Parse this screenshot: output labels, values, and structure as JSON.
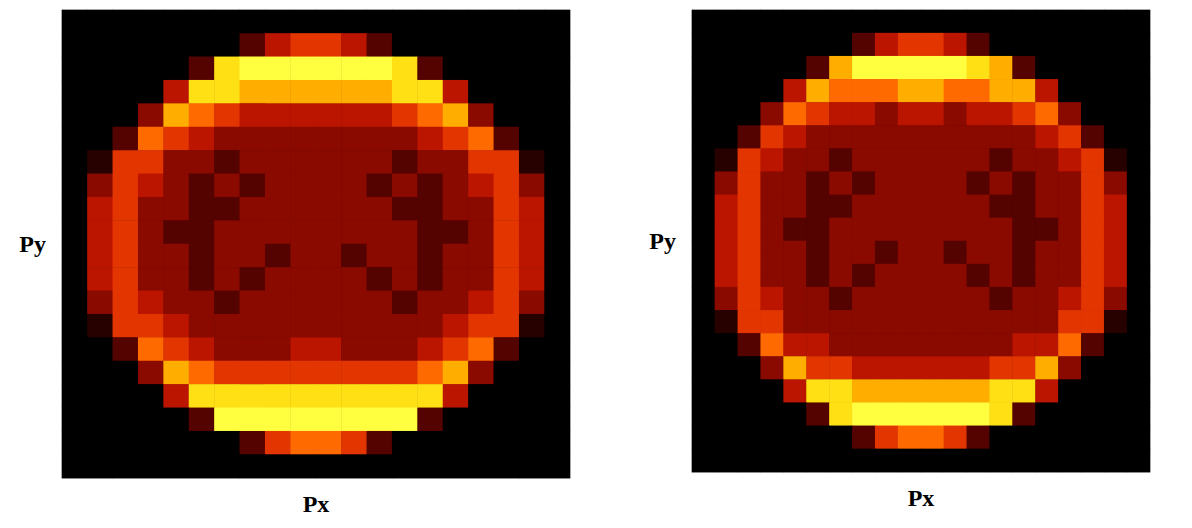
{
  "chart_data": [
    {
      "type": "heatmap",
      "xlabel": "Px",
      "ylabel": "Py",
      "tick_labels": false,
      "zlim": [
        0,
        9
      ],
      "cells": [
        [
          0,
          0,
          0,
          0,
          0,
          0,
          0,
          0,
          0,
          0,
          0,
          0,
          0,
          0,
          0,
          0,
          0,
          0,
          0,
          0
        ],
        [
          0,
          0,
          0,
          0,
          0,
          0,
          0,
          2,
          4,
          5,
          5,
          4,
          2,
          0,
          0,
          0,
          0,
          0,
          0,
          0
        ],
        [
          0,
          0,
          0,
          0,
          0,
          2,
          8,
          9,
          9,
          9,
          9,
          9,
          9,
          8,
          2,
          0,
          0,
          0,
          0,
          0
        ],
        [
          0,
          0,
          0,
          0,
          4,
          8,
          8,
          7,
          7,
          7,
          7,
          7,
          7,
          8,
          8,
          4,
          0,
          0,
          0,
          0
        ],
        [
          0,
          0,
          0,
          3,
          7,
          6,
          5,
          4,
          4,
          4,
          4,
          4,
          4,
          5,
          6,
          7,
          3,
          0,
          0,
          0
        ],
        [
          0,
          0,
          2,
          6,
          5,
          4,
          3,
          3,
          3,
          3,
          3,
          3,
          3,
          3,
          4,
          5,
          6,
          2,
          0,
          0
        ],
        [
          0,
          1,
          5,
          5,
          3,
          3,
          2,
          3,
          3,
          3,
          3,
          3,
          3,
          2,
          3,
          3,
          5,
          5,
          1,
          0
        ],
        [
          0,
          3,
          5,
          4,
          3,
          2,
          3,
          2,
          3,
          3,
          3,
          3,
          2,
          3,
          2,
          3,
          4,
          5,
          3,
          0
        ],
        [
          0,
          4,
          5,
          3,
          3,
          2,
          2,
          3,
          3,
          3,
          3,
          3,
          3,
          2,
          2,
          3,
          3,
          5,
          4,
          0
        ],
        [
          0,
          4,
          5,
          3,
          2,
          2,
          3,
          3,
          3,
          3,
          3,
          3,
          3,
          3,
          2,
          2,
          3,
          5,
          4,
          0
        ],
        [
          0,
          4,
          5,
          3,
          3,
          2,
          3,
          3,
          2,
          3,
          3,
          2,
          3,
          3,
          2,
          3,
          3,
          5,
          4,
          0
        ],
        [
          0,
          4,
          5,
          3,
          3,
          2,
          3,
          2,
          3,
          3,
          3,
          3,
          2,
          3,
          2,
          3,
          3,
          5,
          4,
          0
        ],
        [
          0,
          3,
          5,
          4,
          3,
          3,
          2,
          3,
          3,
          3,
          3,
          3,
          3,
          2,
          3,
          3,
          4,
          5,
          3,
          0
        ],
        [
          0,
          1,
          5,
          5,
          4,
          3,
          3,
          3,
          3,
          3,
          3,
          3,
          3,
          3,
          3,
          4,
          5,
          5,
          1,
          0
        ],
        [
          0,
          0,
          2,
          6,
          5,
          4,
          3,
          3,
          3,
          4,
          4,
          3,
          3,
          3,
          4,
          5,
          6,
          2,
          0,
          0
        ],
        [
          0,
          0,
          0,
          3,
          7,
          6,
          5,
          5,
          5,
          5,
          5,
          5,
          5,
          5,
          6,
          7,
          3,
          0,
          0,
          0
        ],
        [
          0,
          0,
          0,
          0,
          4,
          8,
          8,
          8,
          8,
          8,
          8,
          8,
          8,
          8,
          8,
          4,
          0,
          0,
          0,
          0
        ],
        [
          0,
          0,
          0,
          0,
          0,
          2,
          9,
          9,
          9,
          9,
          9,
          9,
          9,
          9,
          2,
          0,
          0,
          0,
          0,
          0
        ],
        [
          0,
          0,
          0,
          0,
          0,
          0,
          0,
          2,
          5,
          6,
          6,
          5,
          2,
          0,
          0,
          0,
          0,
          0,
          0,
          0
        ],
        [
          0,
          0,
          0,
          0,
          0,
          0,
          0,
          0,
          0,
          0,
          0,
          0,
          0,
          0,
          0,
          0,
          0,
          0,
          0,
          0
        ]
      ]
    },
    {
      "type": "heatmap",
      "xlabel": "Px",
      "ylabel": "Py",
      "tick_labels": false,
      "zlim": [
        0,
        9
      ],
      "cells": [
        [
          0,
          0,
          0,
          0,
          0,
          0,
          0,
          0,
          0,
          0,
          0,
          0,
          0,
          0,
          0,
          0,
          0,
          0,
          0,
          0
        ],
        [
          0,
          0,
          0,
          0,
          0,
          0,
          0,
          2,
          4,
          5,
          5,
          4,
          2,
          0,
          0,
          0,
          0,
          0,
          0,
          0
        ],
        [
          0,
          0,
          0,
          0,
          0,
          2,
          7,
          9,
          9,
          9,
          9,
          9,
          8,
          7,
          2,
          0,
          0,
          0,
          0,
          0
        ],
        [
          0,
          0,
          0,
          0,
          4,
          7,
          6,
          6,
          6,
          7,
          7,
          6,
          6,
          7,
          7,
          4,
          0,
          0,
          0,
          0
        ],
        [
          0,
          0,
          0,
          3,
          6,
          5,
          4,
          4,
          3,
          4,
          4,
          3,
          4,
          4,
          5,
          6,
          3,
          0,
          0,
          0
        ],
        [
          0,
          0,
          2,
          5,
          4,
          3,
          3,
          3,
          3,
          3,
          3,
          3,
          3,
          3,
          3,
          4,
          5,
          2,
          0,
          0
        ],
        [
          0,
          1,
          5,
          4,
          3,
          3,
          2,
          3,
          3,
          3,
          3,
          3,
          3,
          2,
          3,
          3,
          4,
          5,
          1,
          0
        ],
        [
          0,
          3,
          5,
          3,
          3,
          2,
          3,
          2,
          3,
          3,
          3,
          3,
          2,
          3,
          2,
          3,
          3,
          5,
          3,
          0
        ],
        [
          0,
          4,
          5,
          3,
          3,
          2,
          2,
          3,
          3,
          3,
          3,
          3,
          3,
          2,
          2,
          3,
          3,
          5,
          4,
          0
        ],
        [
          0,
          4,
          5,
          3,
          2,
          2,
          3,
          3,
          3,
          3,
          3,
          3,
          3,
          3,
          2,
          2,
          3,
          5,
          4,
          0
        ],
        [
          0,
          4,
          5,
          3,
          3,
          2,
          3,
          3,
          2,
          3,
          3,
          2,
          3,
          3,
          2,
          3,
          3,
          5,
          4,
          0
        ],
        [
          0,
          4,
          5,
          3,
          3,
          2,
          3,
          2,
          3,
          3,
          3,
          3,
          2,
          3,
          2,
          3,
          3,
          5,
          4,
          0
        ],
        [
          0,
          3,
          5,
          4,
          3,
          3,
          2,
          3,
          3,
          3,
          3,
          3,
          3,
          2,
          3,
          3,
          4,
          5,
          3,
          0
        ],
        [
          0,
          1,
          5,
          5,
          3,
          3,
          3,
          3,
          3,
          3,
          3,
          3,
          3,
          3,
          3,
          3,
          5,
          5,
          1,
          0
        ],
        [
          0,
          0,
          2,
          6,
          4,
          4,
          3,
          3,
          3,
          3,
          3,
          3,
          3,
          3,
          4,
          4,
          6,
          2,
          0,
          0
        ],
        [
          0,
          0,
          0,
          3,
          7,
          5,
          5,
          4,
          4,
          4,
          4,
          4,
          4,
          5,
          5,
          7,
          3,
          0,
          0,
          0
        ],
        [
          0,
          0,
          0,
          0,
          4,
          8,
          8,
          7,
          7,
          7,
          7,
          7,
          7,
          8,
          8,
          4,
          0,
          0,
          0,
          0
        ],
        [
          0,
          0,
          0,
          0,
          0,
          2,
          8,
          9,
          9,
          9,
          9,
          9,
          9,
          8,
          2,
          0,
          0,
          0,
          0,
          0
        ],
        [
          0,
          0,
          0,
          0,
          0,
          0,
          0,
          2,
          5,
          6,
          6,
          5,
          2,
          0,
          0,
          0,
          0,
          0,
          0,
          0
        ],
        [
          0,
          0,
          0,
          0,
          0,
          0,
          0,
          0,
          0,
          0,
          0,
          0,
          0,
          0,
          0,
          0,
          0,
          0,
          0,
          0
        ]
      ]
    }
  ]
}
